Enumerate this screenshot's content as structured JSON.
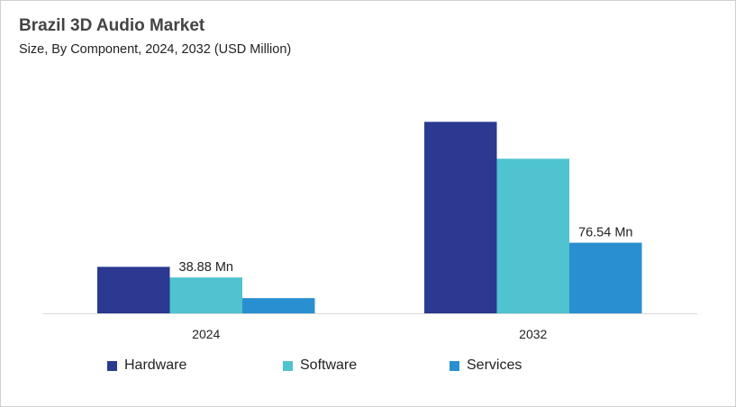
{
  "chart_data": {
    "type": "bar",
    "title": "Brazil 3D Audio Market",
    "subtitle": "Size, By Component, 2024, 2032 (USD Million)",
    "categories": [
      "2024",
      "2032"
    ],
    "series": [
      {
        "name": "Hardware",
        "values": [
          50.4,
          207.5
        ],
        "color": "#2b3990"
      },
      {
        "name": "Software",
        "values": [
          38.88,
          167.5
        ],
        "color": "#4fc3cf"
      },
      {
        "name": "Services",
        "values": [
          16.5,
          76.54
        ],
        "color": "#2a8fd0"
      }
    ],
    "data_labels": [
      {
        "series": "Software",
        "category": "2024",
        "text": "38.88 Mn"
      },
      {
        "series": "Services",
        "category": "2032",
        "text": "76.54 Mn"
      }
    ],
    "ylim": [
      0,
      250
    ],
    "grid": false,
    "legend_position": "bottom"
  }
}
